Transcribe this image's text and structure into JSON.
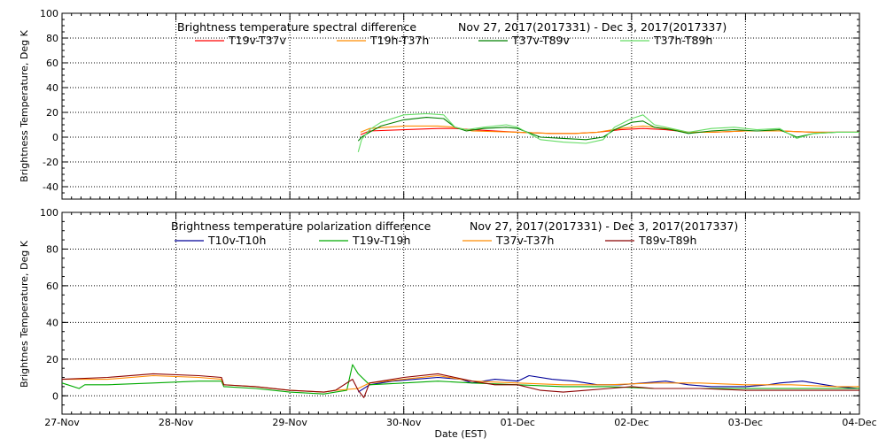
{
  "chart_data": [
    {
      "type": "line",
      "title": "Brightness temperature spectral difference",
      "date_range": "Nov 27, 2017(2017331) - Dec  3, 2017(2017337)",
      "ylabel": "Brightness Temperature, Deg K",
      "xlim": [
        "27-Nov",
        "04-Dec"
      ],
      "ylim": [
        -50,
        100
      ],
      "yticks": [
        -40,
        -20,
        0,
        20,
        40,
        60,
        80,
        100
      ],
      "grid": true,
      "legend_position": "top",
      "series": [
        {
          "name": "T19v-T37v",
          "color": "#ff0000",
          "x": [
            2.62,
            2.7,
            3.0,
            3.3,
            3.45,
            3.6,
            4.0,
            4.3,
            4.5,
            4.7,
            4.9,
            5.1,
            5.3,
            5.5,
            5.7,
            6.0,
            6.3,
            6.6,
            7.0
          ],
          "y": [
            2,
            5,
            6,
            7,
            7,
            6,
            4,
            3,
            3,
            4,
            6,
            7,
            6,
            4,
            4,
            5,
            5,
            4,
            4
          ]
        },
        {
          "name": "T19h-T37h",
          "color": "#ff8c00",
          "x": [
            2.62,
            2.7,
            3.0,
            3.3,
            3.45,
            3.6,
            4.0,
            4.3,
            4.5,
            4.7,
            4.9,
            5.1,
            5.3,
            5.5,
            5.7,
            6.0,
            6.3,
            6.6,
            7.0
          ],
          "y": [
            4,
            7,
            9,
            9,
            8,
            5,
            4,
            3,
            3,
            4,
            7,
            9,
            7,
            4,
            4,
            5,
            5,
            4,
            4
          ]
        },
        {
          "name": "T37v-T89v",
          "color": "#008000",
          "x": [
            2.6,
            2.63,
            2.7,
            2.8,
            3.0,
            3.2,
            3.35,
            3.45,
            3.55,
            3.7,
            3.9,
            4.0,
            4.2,
            4.4,
            4.6,
            4.75,
            4.85,
            5.0,
            5.1,
            5.2,
            5.35,
            5.5,
            5.7,
            5.9,
            6.1,
            6.3,
            6.45,
            6.6,
            6.8,
            7.0
          ],
          "y": [
            -3,
            0,
            4,
            9,
            14,
            16,
            15,
            8,
            5,
            7,
            8,
            7,
            0,
            -1,
            -2,
            0,
            6,
            12,
            13,
            8,
            6,
            3,
            5,
            6,
            5,
            6,
            0,
            3,
            4,
            4
          ]
        },
        {
          "name": "T37h-T89h",
          "color": "#66dd66",
          "x": [
            2.6,
            2.63,
            2.7,
            2.8,
            3.0,
            3.2,
            3.35,
            3.45,
            3.55,
            3.7,
            3.9,
            4.0,
            4.2,
            4.4,
            4.6,
            4.75,
            4.85,
            5.0,
            5.1,
            5.2,
            5.35,
            5.5,
            5.7,
            5.9,
            6.1,
            6.3,
            6.45,
            6.6,
            6.8,
            7.0
          ],
          "y": [
            -12,
            -2,
            6,
            12,
            18,
            19,
            18,
            8,
            6,
            8,
            10,
            8,
            -2,
            -4,
            -5,
            -2,
            8,
            15,
            18,
            10,
            7,
            4,
            7,
            8,
            6,
            7,
            -1,
            3,
            4,
            4
          ]
        }
      ]
    },
    {
      "type": "line",
      "title": "Brightness temperature polarization difference",
      "date_range": "Nov 27, 2017(2017331) - Dec  3, 2017(2017337)",
      "xlabel": "Date (EST)",
      "ylabel": "Brightnes Temperature, Deg K",
      "xticks": [
        "27-Nov",
        "28-Nov",
        "29-Nov",
        "30-Nov",
        "01-Dec",
        "02-Dec",
        "03-Dec",
        "04-Dec"
      ],
      "xlim": [
        "27-Nov",
        "04-Dec"
      ],
      "ylim": [
        -10,
        100
      ],
      "yticks": [
        0,
        20,
        40,
        60,
        80,
        100
      ],
      "grid": true,
      "legend_position": "top",
      "series": [
        {
          "name": "T10v-T10h",
          "color": "#000099",
          "x": [
            2.6,
            2.7,
            2.9,
            3.1,
            3.3,
            3.5,
            3.6,
            3.8,
            4.0,
            4.1,
            4.3,
            4.5,
            4.7,
            4.9,
            5.1,
            5.3,
            5.5,
            5.7,
            6.0,
            6.2,
            6.3,
            6.5,
            6.8,
            7.0
          ],
          "y": [
            2,
            6,
            8,
            9,
            10,
            9,
            7,
            9,
            8,
            11,
            9,
            8,
            6,
            6,
            7,
            8,
            6,
            5,
            5,
            6,
            7,
            8,
            5,
            4
          ]
        },
        {
          "name": "T19v-T19h",
          "color": "#00aa00",
          "x": [
            0,
            0.05,
            0.15,
            0.2,
            0.4,
            0.8,
            1.2,
            1.4,
            1.42,
            1.7,
            2.0,
            2.3,
            2.4,
            2.5,
            2.55,
            2.6,
            2.7,
            3.0,
            3.3,
            3.6,
            4.0,
            4.4,
            4.8,
            5.2,
            5.6,
            6.0,
            6.4,
            6.8,
            7.0
          ],
          "y": [
            7,
            6,
            4,
            6,
            6,
            7,
            8,
            8,
            5,
            4,
            2,
            1,
            2,
            3,
            17,
            12,
            6,
            7,
            8,
            7,
            6,
            5,
            5,
            4,
            4,
            4,
            4,
            4,
            4
          ]
        },
        {
          "name": "T37v-T37h",
          "color": "#ff8c00",
          "x": [
            0,
            0.4,
            0.8,
            1.2,
            1.4,
            1.42,
            1.7,
            2.0,
            2.3,
            2.4,
            2.6,
            2.7,
            3.0,
            3.3,
            3.6,
            4.0,
            4.4,
            4.8,
            5.2,
            5.6,
            6.0,
            6.4,
            6.8,
            7.0
          ],
          "y": [
            9,
            9,
            11,
            10,
            9,
            6,
            5,
            3,
            2,
            3,
            4,
            7,
            9,
            11,
            8,
            7,
            6,
            6,
            7,
            7,
            6,
            6,
            5,
            5
          ]
        },
        {
          "name": "T89v-T89h",
          "color": "#8b0000",
          "x": [
            0,
            0.4,
            0.8,
            1.2,
            1.4,
            1.42,
            1.7,
            2.0,
            2.3,
            2.4,
            2.55,
            2.6,
            2.65,
            2.7,
            3.0,
            3.3,
            3.45,
            3.6,
            3.8,
            4.0,
            4.2,
            4.4,
            4.6,
            4.8,
            5.0,
            5.2,
            5.6,
            6.0,
            6.4,
            6.8,
            7.0
          ],
          "y": [
            9,
            10,
            12,
            11,
            10,
            6,
            5,
            3,
            2,
            3,
            9,
            3,
            -1,
            7,
            10,
            12,
            10,
            8,
            6,
            6,
            3,
            2,
            3,
            4,
            5,
            4,
            4,
            3,
            3,
            3,
            3
          ]
        }
      ]
    }
  ]
}
